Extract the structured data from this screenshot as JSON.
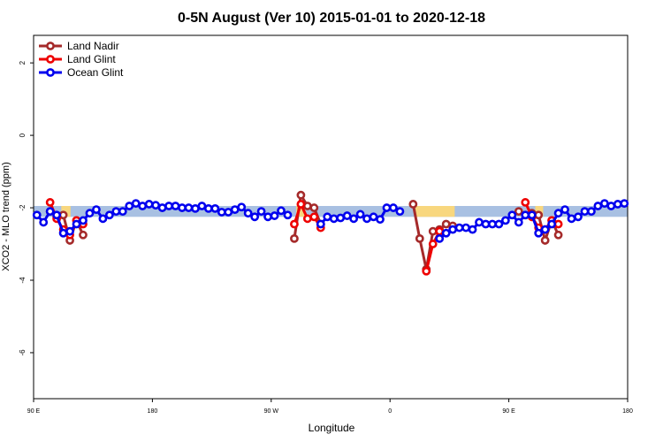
{
  "chart_data": {
    "type": "line",
    "title": "0-5N August (Ver 10)   2015-01-01 to 2020-12-18",
    "xlabel": "Longitude",
    "ylabel": "XCO2 - MLO trend (ppm)",
    "xlim": [
      90,
      540
    ],
    "ylim": [
      -7.27,
      2.76
    ],
    "xticks": [
      {
        "value": 90,
        "label": "90 E"
      },
      180,
      {
        "value": 270,
        "label": "90 W"
      },
      {
        "value": 360,
        "label": "0"
      },
      {
        "value": 450,
        "label": "90 E"
      },
      {
        "value": 540,
        "label": "180"
      }
    ],
    "yticks": [
      2,
      0,
      -2,
      -4,
      -6
    ],
    "legend": "top-left",
    "band": {
      "range": [
        -2.25,
        -1.95
      ],
      "color": "#a8c0e2"
    },
    "highlight_ranges": {
      "color": "#f8d77e",
      "ranges": [
        [
          111,
          118
        ],
        [
          289,
          296
        ],
        [
          379,
          409
        ],
        [
          470,
          476
        ]
      ]
    },
    "x": [
      92.5,
      97.5,
      102.5,
      107.5,
      112.5,
      117.5,
      122.5,
      127.5,
      132.5,
      137.5,
      142.5,
      147.5,
      152.5,
      157.5,
      162.5,
      167.5,
      172.5,
      177.5,
      182.5,
      187.5,
      192.5,
      197.5,
      202.5,
      207.5,
      212.5,
      217.5,
      222.5,
      227.5,
      232.5,
      237.5,
      242.5,
      247.5,
      252.5,
      257.5,
      262.5,
      267.5,
      272.5,
      277.5,
      282.5,
      287.5,
      292.5,
      297.5,
      302.5,
      307.5,
      312.5,
      317.5,
      322.5,
      327.5,
      332.5,
      337.5,
      342.5,
      347.5,
      352.5,
      357.5,
      362.5,
      367.5,
      372.5,
      377.5,
      382.5,
      387.5,
      392.5,
      397.5,
      402.5,
      407.5,
      412.5,
      417.5,
      422.5,
      427.5,
      432.5,
      437.5,
      442.5,
      447.5,
      452.5,
      457.5,
      462.5,
      467.5,
      472.5,
      477.5,
      482.5,
      487.5,
      492.5,
      497.5,
      502.5,
      507.5,
      512.5,
      517.5,
      522.5,
      527.5,
      532.5,
      537.5
    ],
    "series": [
      {
        "name": "Land Nadir",
        "color": "#a52a2a",
        "values": [
          null,
          null,
          -2.1,
          -2.25,
          -2.2,
          -2.9,
          -2.35,
          -2.75,
          null,
          null,
          null,
          null,
          null,
          null,
          null,
          null,
          null,
          null,
          null,
          null,
          null,
          null,
          null,
          null,
          null,
          null,
          null,
          null,
          null,
          null,
          null,
          null,
          null,
          null,
          null,
          null,
          null,
          null,
          null,
          -2.85,
          -1.65,
          -1.95,
          -2.0,
          -2.45,
          null,
          null,
          null,
          null,
          null,
          null,
          null,
          null,
          null,
          null,
          null,
          null,
          null,
          -1.9,
          -2.85,
          -3.7,
          -2.65,
          -2.6,
          -2.45,
          -2.5,
          null,
          null,
          null,
          null,
          null,
          null,
          null,
          null,
          null,
          -2.1,
          -2.2,
          -2.15,
          -2.2,
          -2.9,
          -2.35,
          -2.75,
          null,
          null,
          null,
          null,
          null,
          null,
          null,
          null,
          null,
          null
        ]
      },
      {
        "name": "Land Glint",
        "color": "#ee0000",
        "values": [
          null,
          null,
          -1.85,
          -2.3,
          -2.6,
          -2.75,
          -2.35,
          -2.45,
          null,
          null,
          null,
          null,
          null,
          null,
          null,
          null,
          null,
          null,
          null,
          null,
          null,
          null,
          null,
          null,
          null,
          null,
          null,
          null,
          null,
          null,
          null,
          null,
          null,
          null,
          null,
          null,
          null,
          null,
          null,
          -2.45,
          -1.9,
          -2.3,
          -2.25,
          -2.55,
          null,
          null,
          null,
          null,
          null,
          null,
          null,
          null,
          null,
          null,
          null,
          null,
          null,
          null,
          null,
          -3.75,
          -3.0,
          -2.65,
          null,
          null,
          null,
          null,
          null,
          null,
          null,
          null,
          null,
          null,
          null,
          null,
          -1.85,
          -2.25,
          -2.55,
          -2.6,
          -2.35,
          -2.45,
          null,
          null,
          null,
          null,
          null,
          null,
          null,
          null,
          null,
          null
        ]
      },
      {
        "name": "Ocean Glint",
        "color": "#0000ee",
        "values": [
          -2.2,
          -2.4,
          -2.1,
          -2.2,
          -2.7,
          -2.65,
          -2.45,
          -2.35,
          -2.15,
          -2.05,
          -2.3,
          -2.2,
          -2.1,
          -2.1,
          -1.95,
          -1.88,
          -1.95,
          -1.9,
          -1.93,
          -2.0,
          -1.95,
          -1.95,
          -2.0,
          -2.0,
          -2.02,
          -1.95,
          -2.02,
          -2.02,
          -2.12,
          -2.12,
          -2.05,
          -1.98,
          -2.15,
          -2.25,
          -2.1,
          -2.25,
          -2.22,
          -2.08,
          -2.2,
          null,
          null,
          null,
          null,
          -2.45,
          -2.25,
          -2.3,
          -2.28,
          -2.22,
          -2.3,
          -2.18,
          -2.3,
          -2.25,
          -2.32,
          -2.0,
          -2.0,
          -2.1,
          null,
          null,
          null,
          null,
          null,
          -2.85,
          -2.7,
          -2.6,
          -2.55,
          -2.55,
          -2.6,
          -2.4,
          -2.45,
          -2.45,
          -2.45,
          -2.35,
          -2.2,
          -2.4,
          -2.2,
          -2.2,
          -2.7,
          -2.6,
          -2.45,
          -2.15,
          -2.05,
          -2.3,
          -2.25,
          -2.1,
          -2.1,
          -1.95,
          -1.88,
          -1.95,
          -1.9,
          -1.88
        ]
      }
    ]
  }
}
